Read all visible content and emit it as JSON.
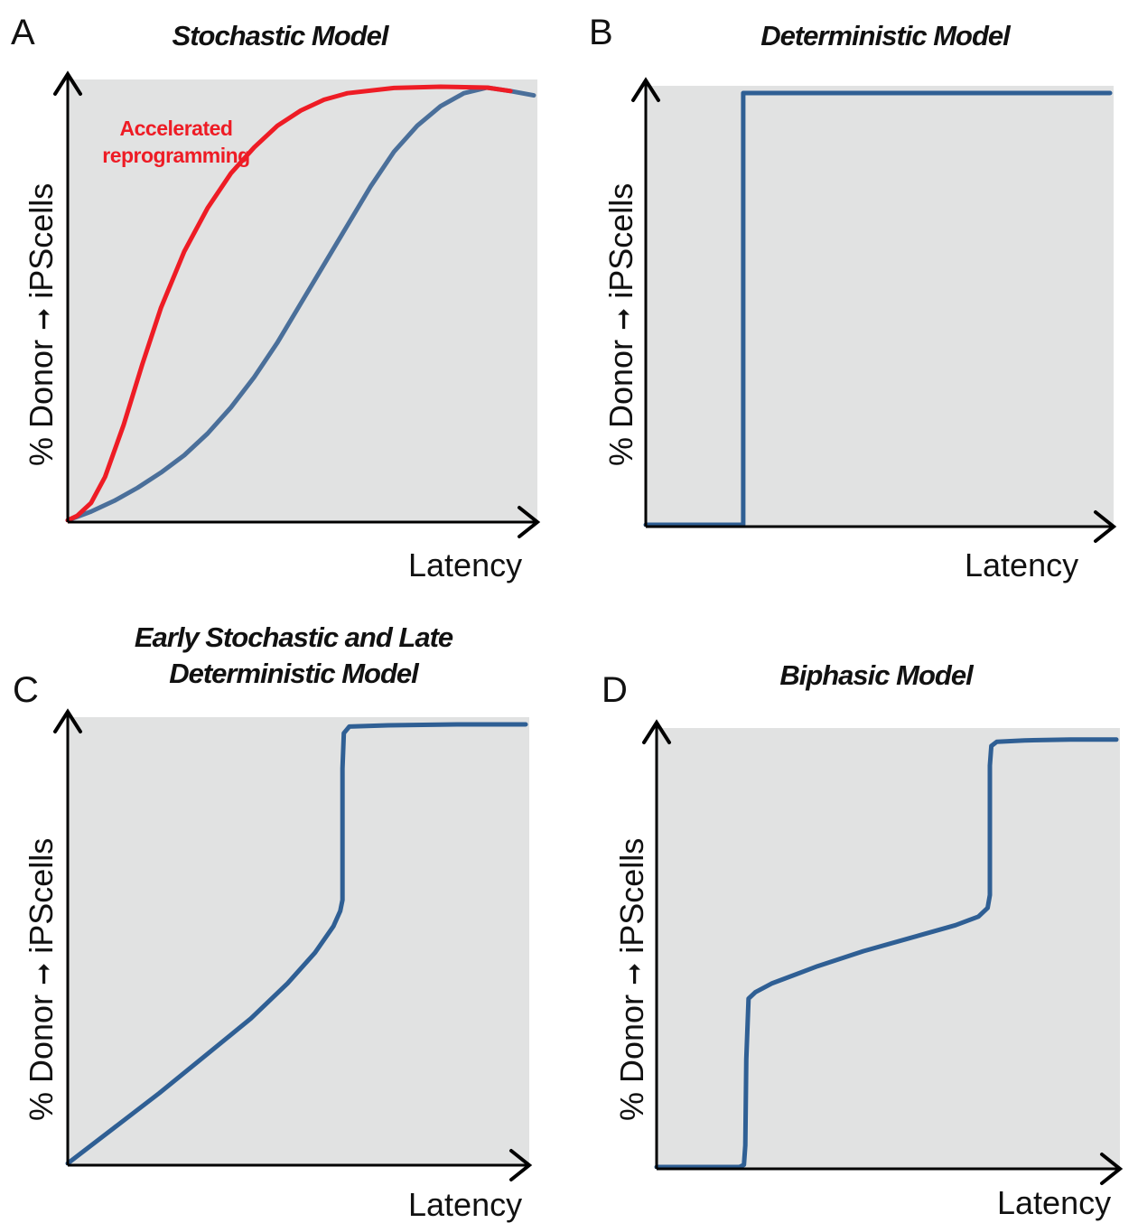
{
  "panels": [
    {
      "letter": "A",
      "title": "Stochastic Model",
      "ylabel": {
        "pre": "% Donor",
        "arrow": "➞",
        "post": " iPScells"
      },
      "xlabel": "Latency",
      "annotation": "Accelerated\nreprogramming",
      "series": [
        {
          "color": "#4a6f9a",
          "points": [
            [
              0,
              0
            ],
            [
              0.05,
              0.02
            ],
            [
              0.1,
              0.045
            ],
            [
              0.15,
              0.075
            ],
            [
              0.2,
              0.11
            ],
            [
              0.25,
              0.15
            ],
            [
              0.3,
              0.2
            ],
            [
              0.35,
              0.26
            ],
            [
              0.4,
              0.33
            ],
            [
              0.45,
              0.41
            ],
            [
              0.5,
              0.5
            ],
            [
              0.55,
              0.59
            ],
            [
              0.6,
              0.68
            ],
            [
              0.65,
              0.77
            ],
            [
              0.7,
              0.85
            ],
            [
              0.75,
              0.91
            ],
            [
              0.8,
              0.955
            ],
            [
              0.85,
              0.985
            ],
            [
              0.9,
              0.998
            ],
            [
              0.95,
              0.99
            ],
            [
              1,
              0.98
            ]
          ]
        },
        {
          "color": "#ee1c25",
          "points": [
            [
              0,
              0
            ],
            [
              0.02,
              0.01
            ],
            [
              0.05,
              0.04
            ],
            [
              0.08,
              0.1
            ],
            [
              0.12,
              0.22
            ],
            [
              0.16,
              0.36
            ],
            [
              0.2,
              0.49
            ],
            [
              0.25,
              0.62
            ],
            [
              0.3,
              0.72
            ],
            [
              0.35,
              0.8
            ],
            [
              0.4,
              0.86
            ],
            [
              0.45,
              0.91
            ],
            [
              0.5,
              0.945
            ],
            [
              0.55,
              0.97
            ],
            [
              0.6,
              0.985
            ],
            [
              0.7,
              0.997
            ],
            [
              0.8,
              1.0
            ],
            [
              0.9,
              0.998
            ],
            [
              0.95,
              0.99
            ]
          ]
        }
      ]
    },
    {
      "letter": "B",
      "title": "Deterministic Model",
      "ylabel": {
        "pre": "% Donor",
        "arrow": "➞",
        "post": " iPScells"
      },
      "xlabel": "Latency",
      "series": [
        {
          "color": "#2f5f94",
          "points": [
            [
              0,
              0
            ],
            [
              0.21,
              0
            ],
            [
              0.21,
              1
            ],
            [
              1,
              1
            ]
          ]
        }
      ]
    },
    {
      "letter": "C",
      "title": "Early Stochastic and Late\nDeterministic Model",
      "ylabel": {
        "pre": "% Donor",
        "arrow": "➞",
        "post": " iPScells"
      },
      "xlabel": "Latency",
      "series": [
        {
          "color": "#2f5f94",
          "points": [
            [
              0,
              0
            ],
            [
              0.1,
              0.08
            ],
            [
              0.2,
              0.16
            ],
            [
              0.3,
              0.245
            ],
            [
              0.4,
              0.33
            ],
            [
              0.48,
              0.41
            ],
            [
              0.54,
              0.48
            ],
            [
              0.58,
              0.54
            ],
            [
              0.595,
              0.575
            ],
            [
              0.6,
              0.6
            ],
            [
              0.6,
              0.9
            ],
            [
              0.603,
              0.98
            ],
            [
              0.615,
              0.995
            ],
            [
              0.7,
              0.998
            ],
            [
              0.85,
              1.0
            ],
            [
              1,
              1.0
            ]
          ]
        }
      ]
    },
    {
      "letter": "D",
      "title": "Biphasic Model",
      "ylabel": {
        "pre": "% Donor",
        "arrow": "➞",
        "post": " iPScells"
      },
      "xlabel": "Latency",
      "series": [
        {
          "color": "#2f5f94",
          "points": [
            [
              0,
              0
            ],
            [
              0.18,
              0
            ],
            [
              0.19,
              0.005
            ],
            [
              0.193,
              0.05
            ],
            [
              0.195,
              0.25
            ],
            [
              0.2,
              0.39
            ],
            [
              0.215,
              0.405
            ],
            [
              0.25,
              0.425
            ],
            [
              0.35,
              0.465
            ],
            [
              0.45,
              0.5
            ],
            [
              0.55,
              0.53
            ],
            [
              0.65,
              0.56
            ],
            [
              0.7,
              0.58
            ],
            [
              0.72,
              0.6
            ],
            [
              0.725,
              0.63
            ],
            [
              0.725,
              0.93
            ],
            [
              0.728,
              0.975
            ],
            [
              0.74,
              0.985
            ],
            [
              0.8,
              0.988
            ],
            [
              0.9,
              0.99
            ],
            [
              1,
              0.99
            ]
          ]
        }
      ]
    }
  ]
}
